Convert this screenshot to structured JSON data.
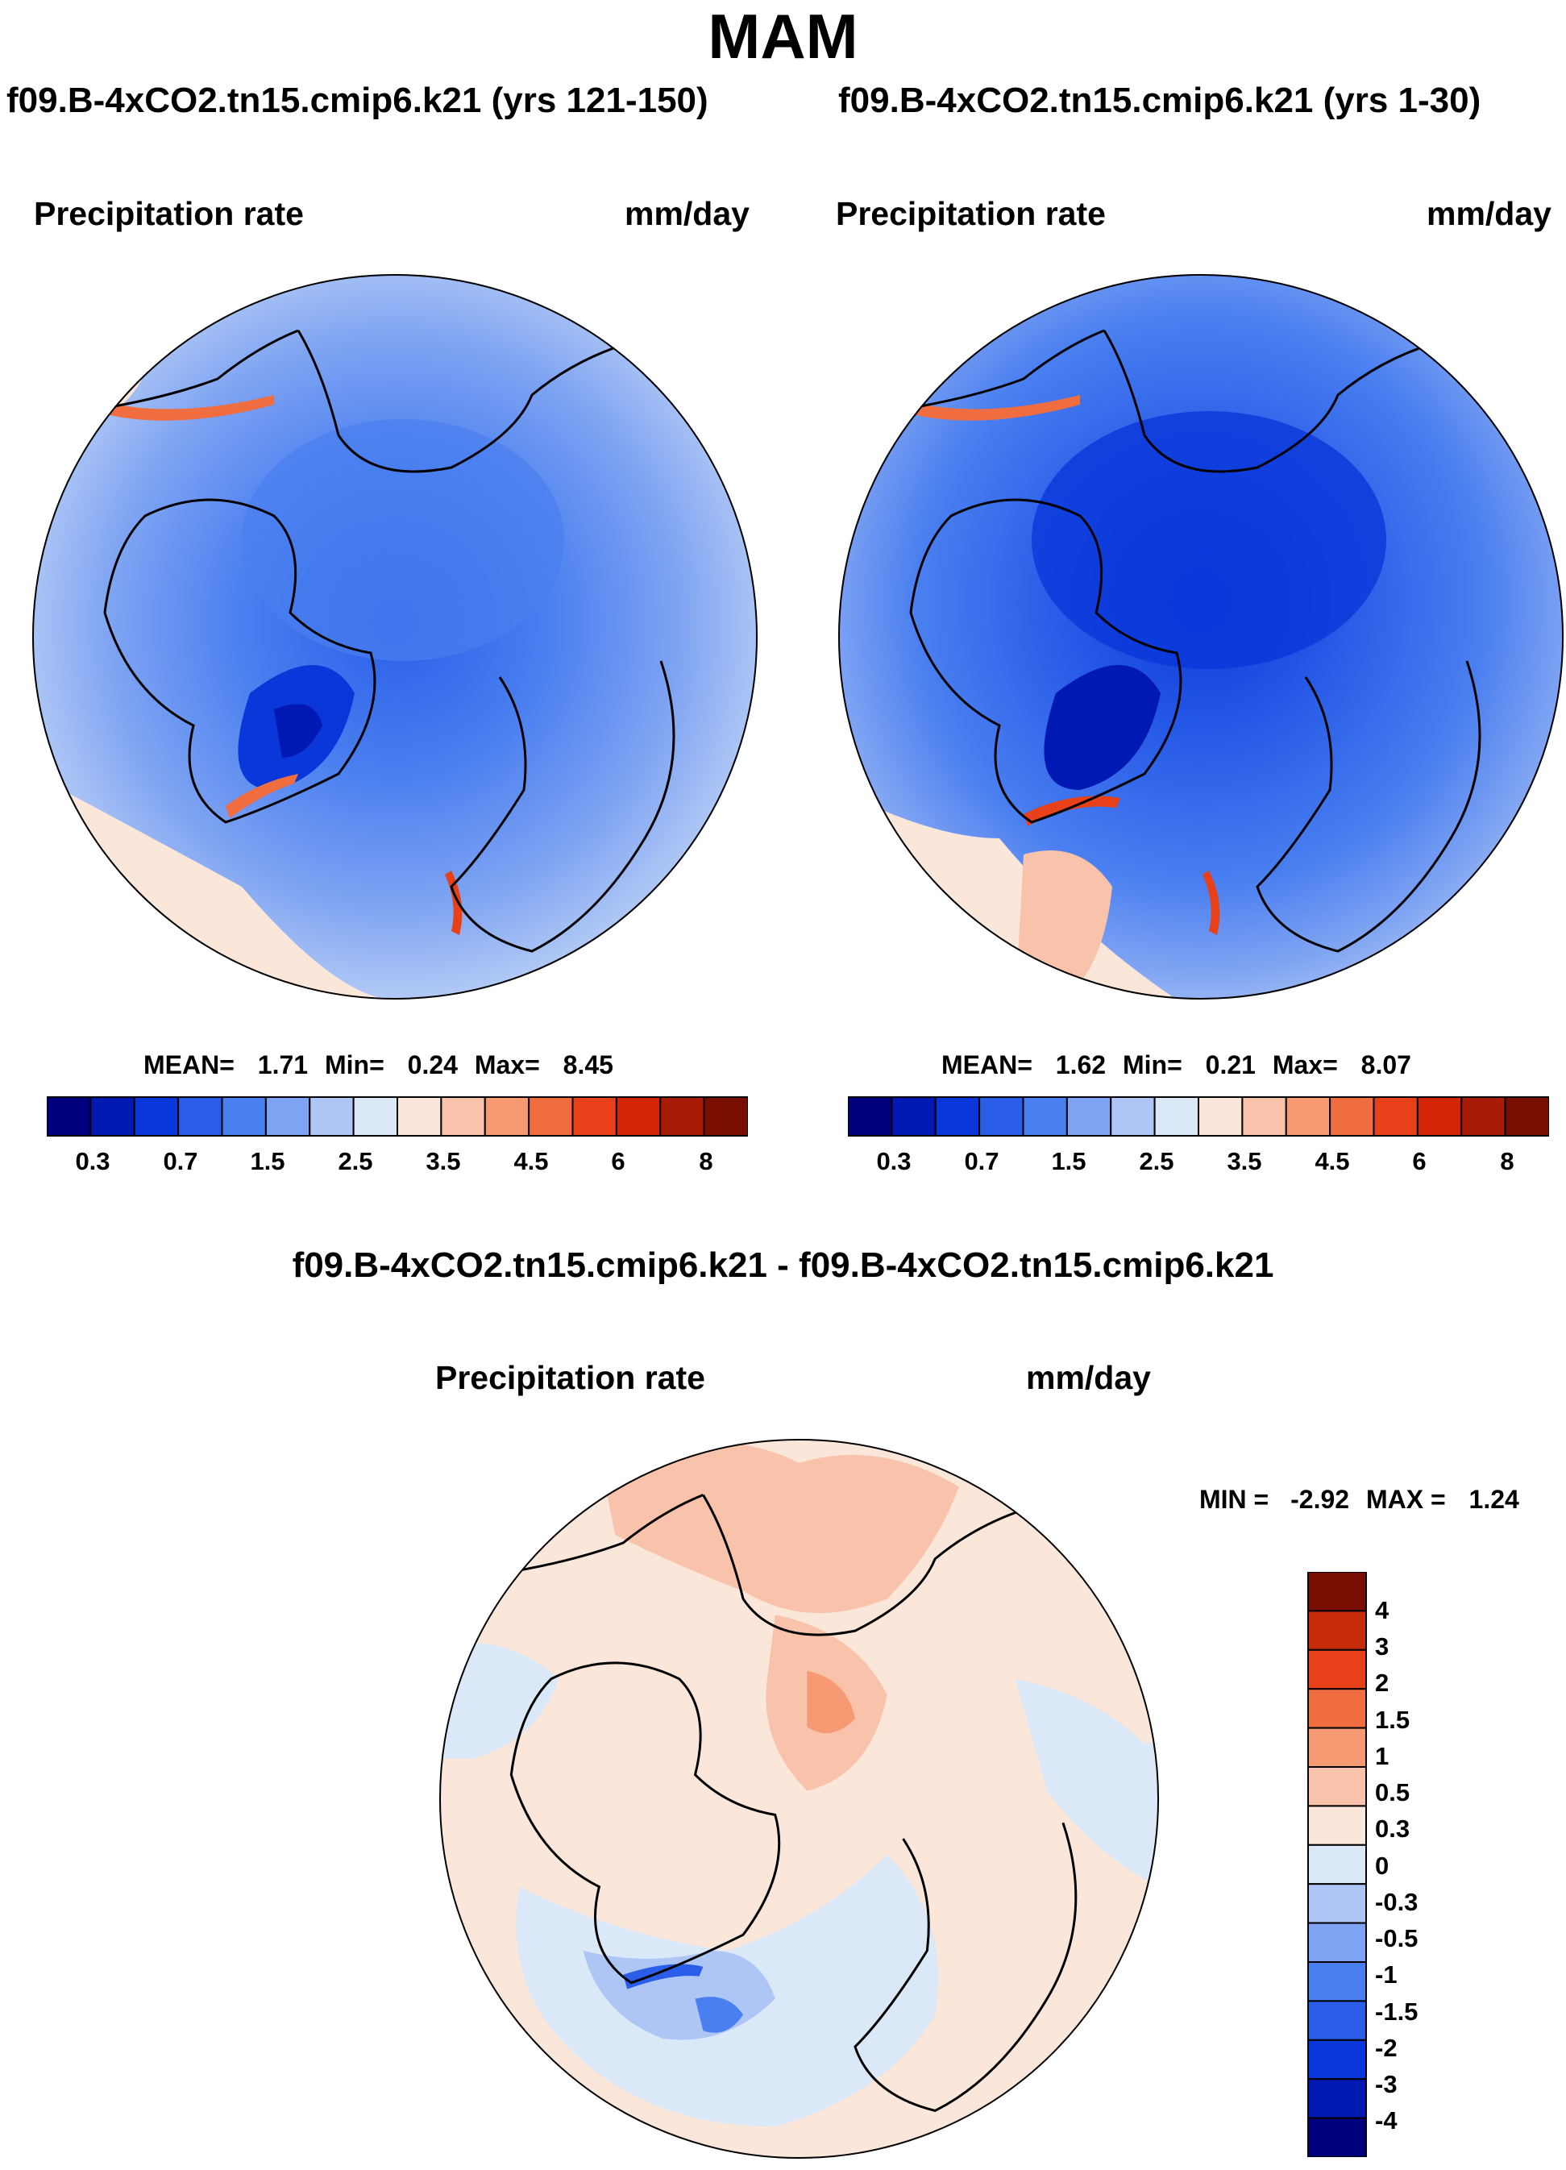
{
  "title": "MAM",
  "palette": {
    "absolute": [
      "#00007f",
      "#0019b3",
      "#0a37d9",
      "#2a5ee8",
      "#4a7ff0",
      "#7ea3f2",
      "#adc6f5",
      "#dbe8f7",
      "#fbe6da",
      "#f8c3aa",
      "#f59a73",
      "#f06d40",
      "#e84018",
      "#d42508",
      "#a81b06",
      "#7a0e02"
    ],
    "difference": [
      "#00007f",
      "#0019b3",
      "#0a37d9",
      "#2a5ee8",
      "#4a7ff0",
      "#7ea3f2",
      "#adc6f5",
      "#dbe8f7",
      "#fbe6da",
      "#f8c3aa",
      "#f59a73",
      "#f06d40",
      "#e84018",
      "#c62a0a",
      "#7a0e02"
    ]
  },
  "panels": {
    "left": {
      "title": "f09.B-4xCO2.tn15.cmip6.k21 (yrs 121-150)",
      "variable": "Precipitation rate",
      "units": "mm/day",
      "stats": {
        "mean_label": "MEAN=",
        "mean": "1.71",
        "min_label": "Min=",
        "min": "0.24",
        "max_label": "Max=",
        "max": "8.45"
      },
      "colorbar_ticks": [
        "0.3",
        "0.7",
        "1.5",
        "2.5",
        "3.5",
        "4.5",
        "6",
        "8"
      ]
    },
    "right": {
      "title": "f09.B-4xCO2.tn15.cmip6.k21 (yrs 1-30)",
      "variable": "Precipitation rate",
      "units": "mm/day",
      "stats": {
        "mean_label": "MEAN=",
        "mean": "1.62",
        "min_label": "Min=",
        "min": "0.21",
        "max_label": "Max=",
        "max": "8.07"
      },
      "colorbar_ticks": [
        "0.3",
        "0.7",
        "1.5",
        "2.5",
        "3.5",
        "4.5",
        "6",
        "8"
      ]
    },
    "bottom": {
      "title": "f09.B-4xCO2.tn15.cmip6.k21 - f09.B-4xCO2.tn15.cmip6.k21",
      "variable": "Precipitation rate",
      "units": "mm/day",
      "stats": {
        "min_label": "MIN =",
        "min": "-2.92",
        "max_label": "MAX =",
        "max": "1.24"
      },
      "colorbar_ticks": [
        "4",
        "3",
        "2",
        "1.5",
        "1",
        "0.5",
        "0.3",
        "0",
        "-0.3",
        "-0.5",
        "-1",
        "-1.5",
        "-2",
        "-3",
        "-4"
      ]
    }
  },
  "chart_data": [
    {
      "type": "heatmap",
      "projection": "north polar stereographic",
      "title": "f09.B-4xCO2.tn15.cmip6.k21 (yrs 121-150)",
      "variable": "Precipitation rate",
      "units": "mm/day",
      "mean": 1.71,
      "min": 0.24,
      "max": 8.45,
      "contour_levels": [
        0.3,
        0.5,
        0.7,
        1,
        1.5,
        2,
        2.5,
        3,
        3.5,
        4,
        4.5,
        5,
        6,
        7,
        8
      ]
    },
    {
      "type": "heatmap",
      "projection": "north polar stereographic",
      "title": "f09.B-4xCO2.tn15.cmip6.k21 (yrs 1-30)",
      "variable": "Precipitation rate",
      "units": "mm/day",
      "mean": 1.62,
      "min": 0.21,
      "max": 8.07,
      "contour_levels": [
        0.3,
        0.5,
        0.7,
        1,
        1.5,
        2,
        2.5,
        3,
        3.5,
        4,
        4.5,
        5,
        6,
        7,
        8
      ]
    },
    {
      "type": "heatmap",
      "projection": "north polar stereographic",
      "title": "f09.B-4xCO2.tn15.cmip6.k21 - f09.B-4xCO2.tn15.cmip6.k21",
      "variable": "Precipitation rate",
      "units": "mm/day",
      "min": -2.92,
      "max": 1.24,
      "contour_levels": [
        -4,
        -3,
        -2,
        -1.5,
        -1,
        -0.5,
        -0.3,
        0,
        0.3,
        0.5,
        1,
        1.5,
        2,
        3,
        4
      ]
    }
  ]
}
